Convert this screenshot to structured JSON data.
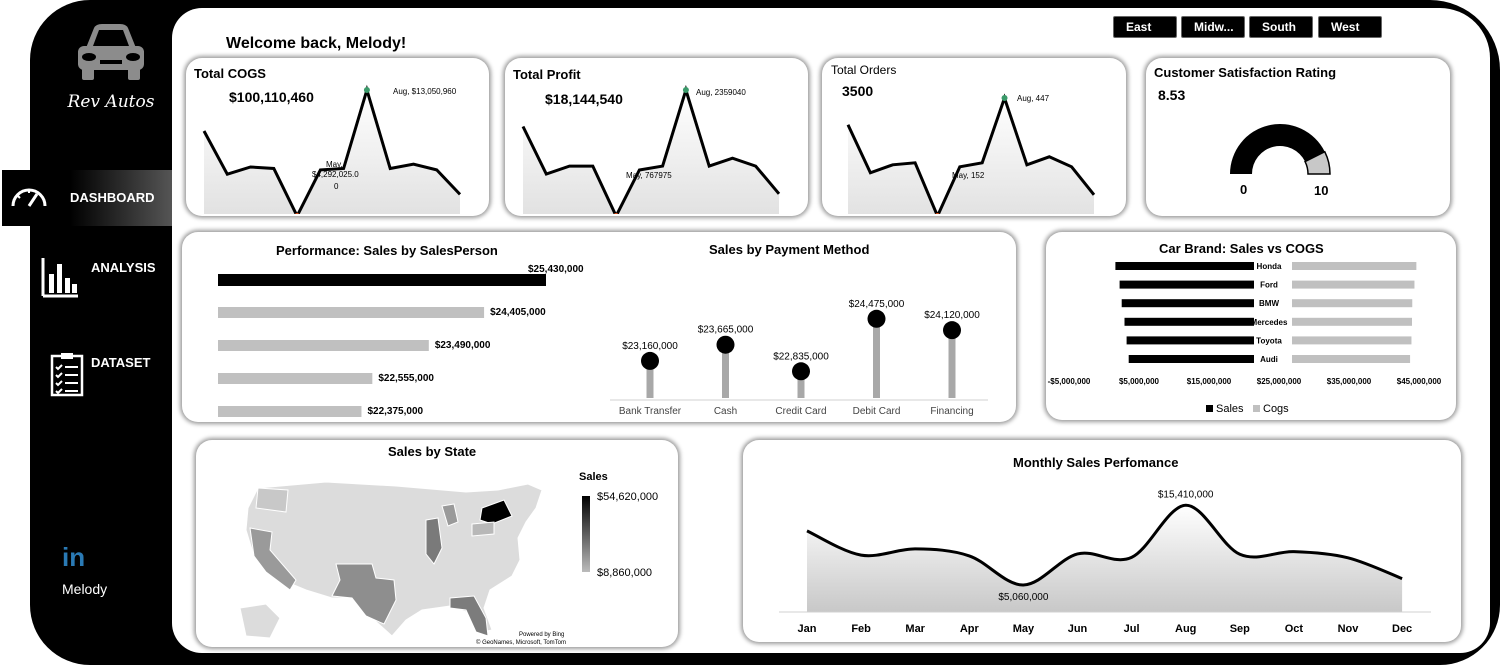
{
  "app": {
    "brand": "Rev Autos",
    "welcome": "Welcome back, Melody!"
  },
  "sidebar": {
    "items": [
      {
        "label": "DASHBOARD",
        "icon": "speedometer-icon",
        "active": true
      },
      {
        "label": "ANALYSIS",
        "icon": "bar-chart-icon",
        "active": false
      },
      {
        "label": "DATASET",
        "icon": "checklist-icon",
        "active": false
      }
    ],
    "profile": {
      "icon": "linkedin-icon",
      "linkedin_text": "in",
      "name": "Melody"
    }
  },
  "regions": [
    "East",
    "Midw...",
    "South",
    "West"
  ],
  "kpis": {
    "cogs": {
      "title": "Total COGS",
      "value": "$100,110,460",
      "max_label": "Aug, $13,050,960",
      "min_label": [
        "May,",
        "$4,292,025.0",
        "0"
      ],
      "series": [
        10.2,
        7.2,
        7.7,
        7.6,
        4.3,
        7.5,
        7.6,
        13.05,
        7.6,
        7.9,
        7.5,
        5.8
      ]
    },
    "profit": {
      "title": "Total Profit",
      "value": "$18,144,540",
      "max_label": "Aug, 2359040",
      "min_label": "May, 767975",
      "series": [
        1.9,
        1.3,
        1.4,
        1.4,
        0.77,
        1.35,
        1.4,
        2.36,
        1.4,
        1.5,
        1.4,
        1.05
      ]
    },
    "orders": {
      "title": "Total Orders",
      "value": "3500",
      "max_label": "Aug, 447",
      "min_label": "May, 152",
      "series": [
        380,
        260,
        280,
        285,
        152,
        275,
        285,
        447,
        280,
        300,
        275,
        205
      ]
    },
    "satisfaction": {
      "title": "Customer Satisfaction Rating",
      "value": "8.53",
      "min": "0",
      "max": "10",
      "rating": 8.53
    }
  },
  "salesperson": {
    "title": "Performance: Sales by SalesPerson",
    "values": [
      25430000,
      24405000,
      23490000,
      22555000,
      22375000
    ],
    "labels": [
      "$25,430,000",
      "$24,405,000",
      "$23,490,000",
      "$22,555,000",
      "$22,375,000"
    ]
  },
  "payment": {
    "title": "Sales by Payment Method",
    "categories": [
      "Bank Transfer",
      "Cash",
      "Credit Card",
      "Debit Card",
      "Financing"
    ],
    "values": [
      23160000,
      23665000,
      22835000,
      24475000,
      24120000
    ],
    "labels": [
      "$23,160,000",
      "$23,665,000",
      "$22,835,000",
      "$24,475,000",
      "$24,120,000"
    ]
  },
  "brands": {
    "title": "Car Brand: Sales vs COGS",
    "categories": [
      "Honda",
      "Ford",
      "BMW",
      "Mercedes",
      "Toyota",
      "Audi"
    ],
    "sales": [
      19800000,
      19200000,
      18900000,
      18500000,
      18200000,
      17900000
    ],
    "cogs": [
      45500000,
      44800000,
      44000000,
      43900000,
      43700000,
      43200000
    ],
    "xticks": [
      "-$5,000,000",
      "$5,000,000",
      "$15,000,000",
      "$25,000,000",
      "$35,000,000",
      "$45,000,000"
    ],
    "legend": [
      "Sales",
      "Cogs"
    ]
  },
  "map": {
    "title": "Sales by State",
    "legend_title": "Sales",
    "max": "$54,620,000",
    "min": "$8,860,000",
    "credit1": "Powered by Bing",
    "credit2": "© GeoNames, Microsoft, TomTom"
  },
  "monthly": {
    "title": "Monthly Sales Perfomance",
    "months": [
      "Jan",
      "Feb",
      "Mar",
      "Apr",
      "May",
      "Jun",
      "Jul",
      "Aug",
      "Sep",
      "Oct",
      "Nov",
      "Dec"
    ],
    "values": [
      12100000,
      8950000,
      9750000,
      8850000,
      5060000,
      9100000,
      8650000,
      15410000,
      9050000,
      9400000,
      8600000,
      5900000
    ],
    "max_label": "$15,410,000",
    "min_label": "$5,060,000"
  },
  "chart_data": [
    {
      "type": "line",
      "title": "Total COGS",
      "x": [
        "Jan",
        "Feb",
        "Mar",
        "Apr",
        "May",
        "Jun",
        "Jul",
        "Aug",
        "Sep",
        "Oct",
        "Nov",
        "Dec"
      ],
      "annotations": [
        "Aug, $13,050,960",
        "May, $4,292,025.00"
      ]
    },
    {
      "type": "line",
      "title": "Total Profit",
      "annotations": [
        "Aug, 2359040",
        "May, 767975"
      ]
    },
    {
      "type": "line",
      "title": "Total Orders",
      "annotations": [
        "Aug, 447",
        "May, 152"
      ]
    },
    {
      "type": "bar",
      "title": "Performance: Sales by SalesPerson",
      "values": [
        25430000,
        24405000,
        23490000,
        22555000,
        22375000
      ]
    },
    {
      "type": "scatter",
      "title": "Sales by Payment Method",
      "categories": [
        "Bank Transfer",
        "Cash",
        "Credit Card",
        "Debit Card",
        "Financing"
      ],
      "values": [
        23160000,
        23665000,
        22835000,
        24475000,
        24120000
      ]
    },
    {
      "type": "bar",
      "title": "Car Brand: Sales vs COGS",
      "categories": [
        "Honda",
        "Ford",
        "BMW",
        "Mercedes",
        "Toyota",
        "Audi"
      ],
      "series": [
        {
          "name": "Sales"
        },
        {
          "name": "Cogs"
        }
      ]
    },
    {
      "type": "line",
      "title": "Monthly Sales Perfomance",
      "categories": [
        "Jan",
        "Feb",
        "Mar",
        "Apr",
        "May",
        "Jun",
        "Jul",
        "Aug",
        "Sep",
        "Oct",
        "Nov",
        "Dec"
      ],
      "values": [
        12100000,
        8950000,
        9750000,
        8850000,
        5060000,
        9100000,
        8650000,
        15410000,
        9050000,
        9400000,
        8600000,
        5900000
      ]
    }
  ],
  "colors": {
    "frame": "#000000",
    "bar_primary": "#000000",
    "bar_secondary": "#c0c0c0",
    "area_fill": "#d9d9d9"
  }
}
